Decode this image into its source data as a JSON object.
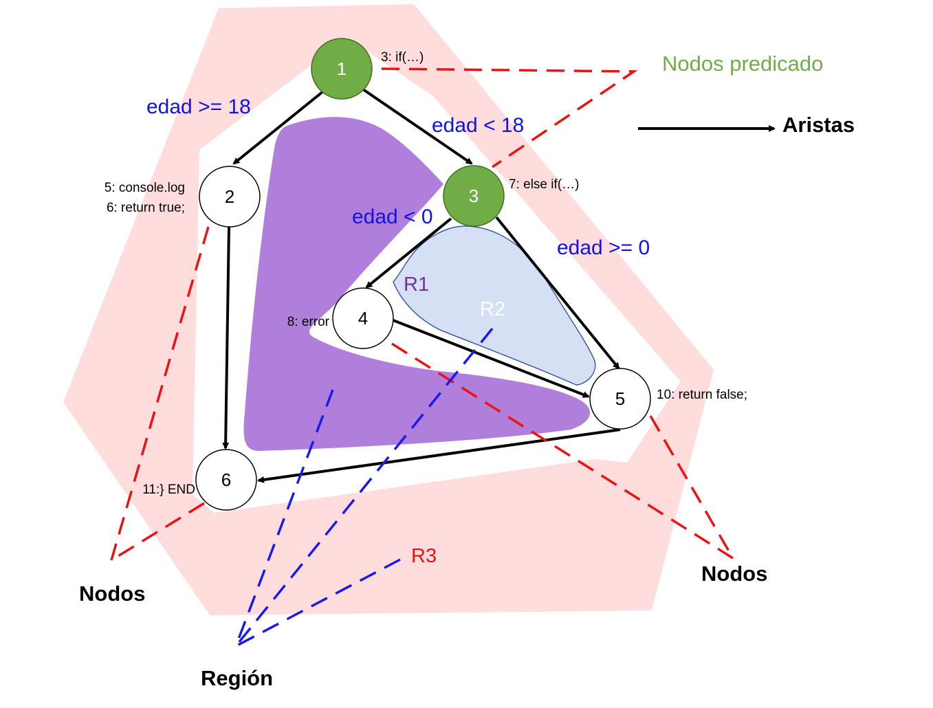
{
  "nodes": {
    "n1": {
      "label": "1",
      "code": "3: if(…)"
    },
    "n2": {
      "label": "2",
      "code1": "5: console.log",
      "code2": "6: return true;"
    },
    "n3": {
      "label": "3",
      "code": "7: else if(…)"
    },
    "n4": {
      "label": "4",
      "code": "8: error"
    },
    "n5": {
      "label": "5",
      "code": "10: return false;"
    },
    "n6": {
      "label": "6",
      "code": "11:} END"
    }
  },
  "edges": {
    "e12": "edad >= 18",
    "e13": "edad < 18",
    "e34": "edad < 0",
    "e35": "edad >= 0"
  },
  "regions": {
    "r1": "R1",
    "r2": "R2",
    "r3": "R3"
  },
  "legend": {
    "predicate_nodes": "Nodos predicado",
    "edges": "Aristas",
    "nodes_left": "Nodos",
    "nodes_right": "Nodos",
    "region": "Región"
  },
  "colors": {
    "outer_region": "#ffdddd",
    "purple_region": "#b07fdb",
    "blue_region": "#d6e0f4",
    "predicate_node": "#70ad47",
    "condition_text": "#1010e8",
    "red_dash": "#ee1111",
    "blue_dash": "#1a1aee"
  }
}
